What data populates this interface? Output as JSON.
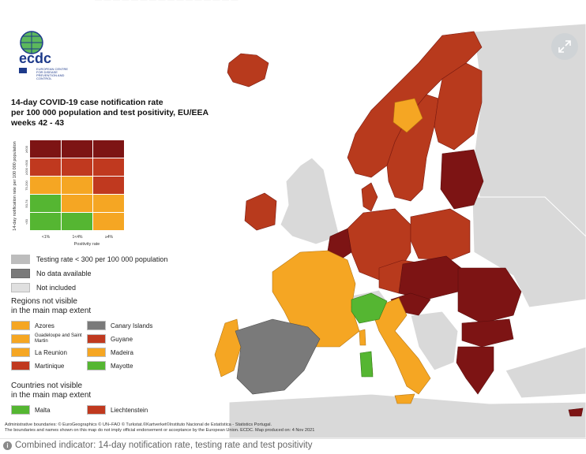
{
  "logo": {
    "text": "ecdc",
    "subtitle": "EUROPEAN CENTRE FOR DISEASE PREVENTION AND CONTROL"
  },
  "title": {
    "line1": "14-day COVID-19 case notification rate",
    "line2": "per 100 000 population and test positivity, EU/EEA",
    "line3": "weeks 42 - 43"
  },
  "matrix": {
    "y_axis_label": "14-day notification rate per 100 000 population",
    "y_ticks": [
      "≥500",
      "≥200 <500",
      "75-200",
      "50-74",
      "<50"
    ],
    "x_axis_label": "Positivity rate",
    "x_ticks": [
      "<1%",
      "1<4%",
      "≥4%"
    ],
    "cells": [
      [
        "#7d1414",
        "#7d1414",
        "#7d1414"
      ],
      [
        "#c0391f",
        "#c0391f",
        "#c0391f"
      ],
      [
        "#f5a623",
        "#f5a623",
        "#c0391f"
      ],
      [
        "#55b632",
        "#f5a623",
        "#f5a623"
      ],
      [
        "#55b632",
        "#55b632",
        "#f5a623"
      ]
    ]
  },
  "legend": {
    "testing_rate": "Testing rate < 300 per 100 000 population",
    "no_data": "No data available",
    "not_included": "Not included",
    "colors": {
      "testing_rate": "#bdbdbd",
      "no_data": "#7a7a7a",
      "not_included": "#e0e0e0"
    }
  },
  "regions": {
    "heading_line1": "Regions not visible",
    "heading_line2": "in the main map extent",
    "items": [
      {
        "label": "Azores",
        "color": "#f5a623"
      },
      {
        "label": "Canary Islands",
        "color": "#7a7a7a"
      },
      {
        "label": "Guadeloupe and Saint Martin",
        "color": "#f5a623"
      },
      {
        "label": "Guyane",
        "color": "#c0391f"
      },
      {
        "label": "La Reunion",
        "color": "#f5a623"
      },
      {
        "label": "Madeira",
        "color": "#f5a623"
      },
      {
        "label": "Martinique",
        "color": "#c0391f"
      },
      {
        "label": "Mayotte",
        "color": "#55b632"
      }
    ]
  },
  "countries": {
    "heading_line1": "Countries not visible",
    "heading_line2": "in the main map extent",
    "items": [
      {
        "label": "Malta",
        "color": "#55b632"
      },
      {
        "label": "Liechtenstein",
        "color": "#c0391f"
      }
    ]
  },
  "footnote": {
    "line1": "Administrative boundaries: © EuroGeographics © UN–FAO © Turkstat.©Kartverket©Instituto Nacional de Estatística - Statistics Portugal.",
    "line2": "The boundaries and names shown on this map do not imply official endorsement or acceptance by the European Union. ECDC. Map produced on: 4 Nov 2021"
  },
  "caption": "Combined indicator: 14-day notification rate, testing rate and test positivity",
  "map_colors": {
    "sea": "#ffffff",
    "dark_red": "#7d1414",
    "red": "#b83a1d",
    "orange": "#f5a623",
    "green": "#55b632",
    "grey": "#7a7a7a",
    "not_included": "#d9d9d9"
  }
}
